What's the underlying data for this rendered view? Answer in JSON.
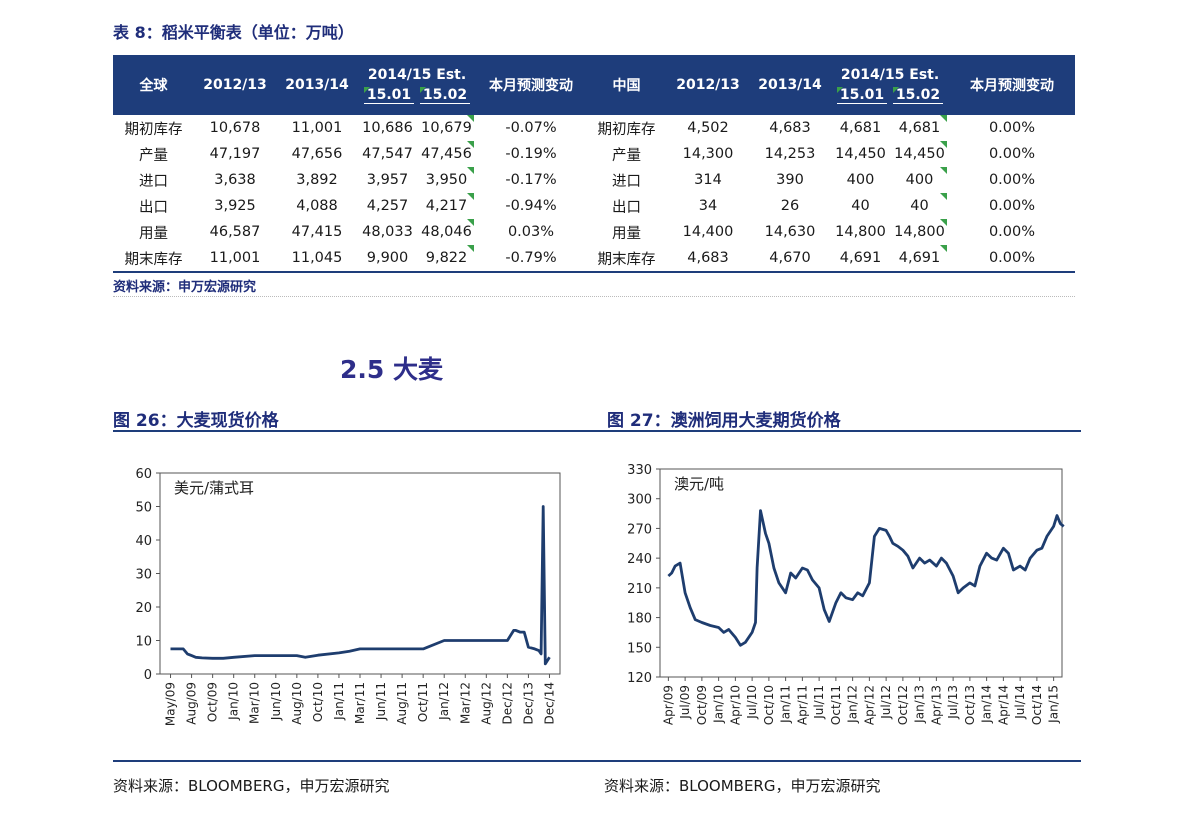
{
  "table": {
    "title": "表 8：稻米平衡表（单位：万吨）",
    "headers": {
      "global": "全球",
      "y1": "2012/13",
      "y2": "2013/14",
      "est": "2014/15 Est.",
      "sub1": "15.01",
      "sub2": "15.02",
      "change": "本月预测变动",
      "china": "中国"
    },
    "rows": [
      {
        "label": "期初库存",
        "g1": "10,678",
        "g2": "11,001",
        "g3": "10,686",
        "g4": "10,679",
        "gchg": "-0.07%",
        "clabel": "期初库存",
        "c1": "4,502",
        "c2": "4,683",
        "c3": "4,681",
        "c4": "4,681",
        "cchg": "0.00%"
      },
      {
        "label": "产量",
        "g1": "47,197",
        "g2": "47,656",
        "g3": "47,547",
        "g4": "47,456",
        "gchg": "-0.19%",
        "clabel": "产量",
        "c1": "14,300",
        "c2": "14,253",
        "c3": "14,450",
        "c4": "14,450",
        "cchg": "0.00%"
      },
      {
        "label": "进口",
        "g1": "3,638",
        "g2": "3,892",
        "g3": "3,957",
        "g4": "3,950",
        "gchg": "-0.17%",
        "clabel": "进口",
        "c1": "314",
        "c2": "390",
        "c3": "400",
        "c4": "400",
        "cchg": "0.00%"
      },
      {
        "label": "出口",
        "g1": "3,925",
        "g2": "4,088",
        "g3": "4,257",
        "g4": "4,217",
        "gchg": "-0.94%",
        "clabel": "出口",
        "c1": "34",
        "c2": "26",
        "c3": "40",
        "c4": "40",
        "cchg": "0.00%"
      },
      {
        "label": "用量",
        "g1": "46,587",
        "g2": "47,415",
        "g3": "48,033",
        "g4": "48,046",
        "gchg": "0.03%",
        "clabel": "用量",
        "c1": "14,400",
        "c2": "14,630",
        "c3": "14,800",
        "c4": "14,800",
        "cchg": "0.00%"
      },
      {
        "label": "期末库存",
        "g1": "11,001",
        "g2": "11,045",
        "g3": "9,900",
        "g4": "9,822",
        "gchg": "-0.79%",
        "clabel": "期末库存",
        "c1": "4,683",
        "c2": "4,670",
        "c3": "4,691",
        "c4": "4,691",
        "cchg": "0.00%"
      }
    ],
    "source": "资料来源：申万宏源研究"
  },
  "section": {
    "heading": "2.5 大麦"
  },
  "figures": {
    "fig26": {
      "title": "图 26：大麦现货价格",
      "source": "资料来源：BLOOMBERG，申万宏源研究"
    },
    "fig27": {
      "title": "图 27：澳洲饲用大麦期货价格",
      "source": "资料来源：BLOOMBERG，申万宏源研究"
    }
  },
  "colors": {
    "navy": "#1e3d7b",
    "line": "#1e3d6e",
    "flag": "#3aa04a"
  },
  "chart_data": [
    {
      "type": "line",
      "ylabel": "美元/蒲式耳",
      "ylim": [
        0,
        60
      ],
      "yticks": [
        0,
        10,
        20,
        30,
        40,
        50,
        60
      ],
      "xticks": [
        "May/09",
        "Aug/09",
        "Oct/09",
        "Jan/10",
        "Mar/10",
        "Jun/10",
        "Aug/10",
        "Oct/10",
        "Jan/11",
        "Mar/11",
        "Jun/11",
        "Aug/11",
        "Oct/11",
        "Jan/12",
        "Mar/12",
        "Aug/12",
        "Dec/12",
        "Dec/13",
        "Dec/14"
      ],
      "series": [
        {
          "x": [
            0,
            0.6,
            0.8,
            1,
            1.2,
            1.5,
            2,
            2.5,
            3,
            4,
            5,
            5.5,
            6,
            6.4,
            6.7,
            7,
            8,
            8.5,
            9,
            10,
            11,
            12,
            13,
            13.6,
            14,
            15,
            15.5,
            16,
            16.3,
            16.4,
            16.6,
            16.8,
            17,
            17.3,
            17.5,
            17.6,
            17.7,
            17.8,
            18
          ],
          "y": [
            7.5,
            7.5,
            6,
            5.5,
            5,
            4.8,
            4.7,
            4.7,
            5,
            5.5,
            5.5,
            5.5,
            5.5,
            5,
            5.3,
            5.6,
            6.3,
            6.8,
            7.5,
            7.5,
            7.5,
            7.5,
            10,
            10,
            10,
            10,
            10,
            10,
            13,
            13,
            12.5,
            12.5,
            8,
            7.5,
            7,
            6,
            50,
            3,
            5
          ]
        }
      ]
    },
    {
      "type": "line",
      "ylabel": "澳元/吨",
      "ylim": [
        120,
        330
      ],
      "yticks": [
        120,
        150,
        180,
        210,
        240,
        270,
        300,
        330
      ],
      "xticks": [
        "Apr/09",
        "Jul/09",
        "Oct/09",
        "Jan/10",
        "Apr/10",
        "Jul/10",
        "Oct/10",
        "Jan/11",
        "Apr/11",
        "Jul/11",
        "Oct/11",
        "Jan/12",
        "Apr/12",
        "Jul/12",
        "Oct/12",
        "Jan/13",
        "Apr/13",
        "Jul/13",
        "Oct/13",
        "Jan/14",
        "Apr/14",
        "Jul/14",
        "Oct/14",
        "Jan/15"
      ],
      "series": [
        {
          "x": [
            0,
            0.2,
            0.4,
            0.7,
            1,
            1.3,
            1.6,
            2,
            2.5,
            3,
            3.3,
            3.6,
            4,
            4.3,
            4.6,
            5,
            5.2,
            5.3,
            5.5,
            5.8,
            6,
            6.3,
            6.6,
            7,
            7.3,
            7.6,
            8,
            8.3,
            8.6,
            9,
            9.3,
            9.6,
            10,
            10.3,
            10.6,
            11,
            11.3,
            11.6,
            12,
            12.3,
            12.6,
            13,
            13.2,
            13.4,
            13.7,
            14,
            14.3,
            14.6,
            15,
            15.3,
            15.6,
            16,
            16.3,
            16.6,
            17,
            17.3,
            17.6,
            18,
            18.3,
            18.6,
            19,
            19.3,
            19.6,
            20,
            20.3,
            20.6,
            21,
            21.3,
            21.6,
            22,
            22.3,
            22.6,
            23,
            23.2,
            23.4,
            23.6
          ],
          "y": [
            222,
            225,
            232,
            235,
            205,
            190,
            178,
            175,
            172,
            170,
            165,
            168,
            160,
            152,
            155,
            165,
            175,
            230,
            288,
            265,
            255,
            230,
            215,
            205,
            225,
            220,
            230,
            228,
            218,
            210,
            188,
            176,
            195,
            205,
            200,
            198,
            205,
            202,
            215,
            262,
            270,
            268,
            262,
            255,
            252,
            248,
            242,
            230,
            240,
            235,
            238,
            232,
            240,
            235,
            222,
            205,
            210,
            215,
            212,
            232,
            245,
            240,
            238,
            250,
            245,
            228,
            232,
            228,
            240,
            248,
            250,
            262,
            272,
            283,
            275,
            272
          ]
        }
      ]
    }
  ]
}
